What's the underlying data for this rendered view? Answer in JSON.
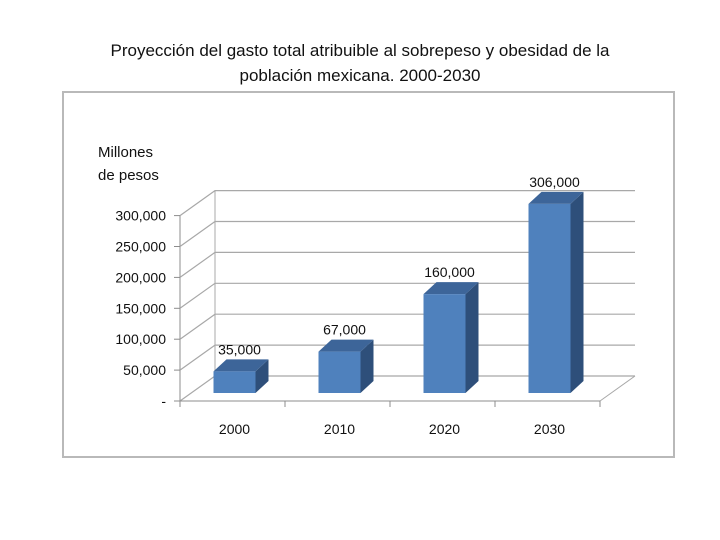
{
  "page": {
    "title_line1": "Proyección del gasto total atribuible al sobrepeso y obesidad de la",
    "title_line2": "población mexicana. 2000-2030"
  },
  "chart_data": {
    "type": "bar",
    "title": "Proyección del gasto total atribuible al sobrepeso y obesidad de la población mexicana. 2000-2030",
    "ylabel_line1": "Millones",
    "ylabel_line2": "de pesos",
    "xlabel": "",
    "categories": [
      "2000",
      "2010",
      "2020",
      "2030"
    ],
    "values": [
      35000,
      67000,
      160000,
      306000
    ],
    "data_labels": [
      "35,000",
      "67,000",
      "160,000",
      "306,000"
    ],
    "yticks": [
      0,
      50000,
      100000,
      150000,
      200000,
      250000,
      300000
    ],
    "ytick_labels": [
      "-",
      "50,000",
      "100,000",
      "150,000",
      "200,000",
      "250,000",
      "300,000"
    ],
    "ylim": [
      0,
      300000
    ],
    "grid": true,
    "style": "3d-column",
    "colors": {
      "bar_front": "#4f81bd",
      "bar_side": "#2e4f7a",
      "bar_top": "#3d6599",
      "grid": "#a8a8a8"
    }
  }
}
